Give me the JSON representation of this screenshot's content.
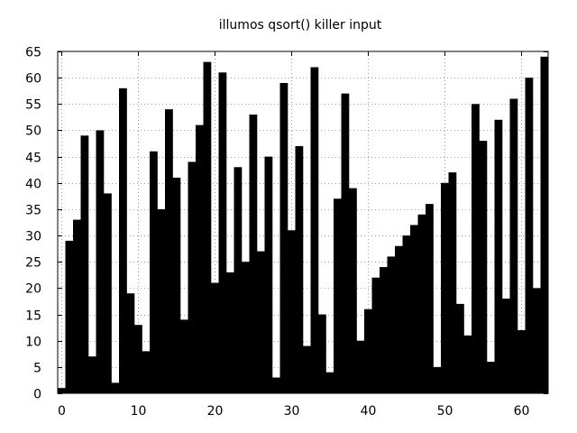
{
  "chart_data": {
    "type": "bar",
    "title": "illumos qsort() killer input",
    "xlabel": "",
    "ylabel": "",
    "x": [
      0,
      1,
      2,
      3,
      4,
      5,
      6,
      7,
      8,
      9,
      10,
      11,
      12,
      13,
      14,
      15,
      16,
      17,
      18,
      19,
      20,
      21,
      22,
      23,
      24,
      25,
      26,
      27,
      28,
      29,
      30,
      31,
      32,
      33,
      34,
      35,
      36,
      37,
      38,
      39,
      40,
      41,
      42,
      43,
      44,
      45,
      46,
      47,
      48,
      49,
      50,
      51,
      52,
      53,
      54,
      55,
      56,
      57,
      58,
      59,
      60,
      61,
      62,
      63
    ],
    "values": [
      1,
      29,
      33,
      49,
      7,
      50,
      38,
      2,
      58,
      19,
      13,
      8,
      46,
      35,
      54,
      41,
      14,
      44,
      51,
      63,
      21,
      61,
      23,
      43,
      25,
      53,
      27,
      45,
      3,
      59,
      31,
      47,
      9,
      62,
      15,
      4,
      37,
      57,
      39,
      10,
      16,
      22,
      24,
      26,
      28,
      30,
      32,
      34,
      36,
      5,
      40,
      42,
      17,
      11,
      55,
      48,
      6,
      52,
      18,
      56,
      12,
      60,
      20,
      64
    ],
    "xlim": [
      -0.5,
      63.5
    ],
    "ylim": [
      0,
      65
    ],
    "xticks": [
      0,
      10,
      20,
      30,
      40,
      50,
      60
    ],
    "yticks": [
      0,
      5,
      10,
      15,
      20,
      25,
      30,
      35,
      40,
      45,
      50,
      55,
      60,
      65
    ],
    "grid": true,
    "bar_color": "#000000",
    "grid_color": "#a0a0a0"
  }
}
